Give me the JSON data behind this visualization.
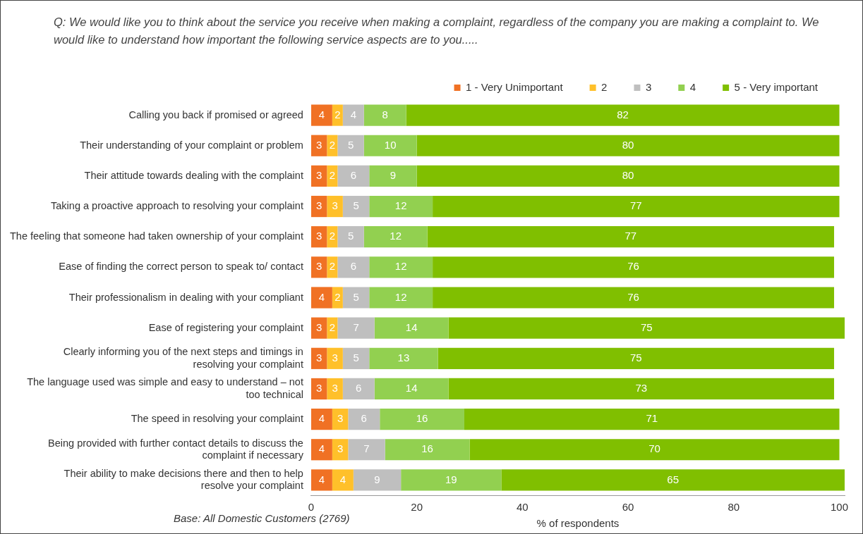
{
  "chart_data": {
    "type": "bar",
    "orientation": "horizontal",
    "stacked": true,
    "title": "Q:   We would like you to think about the service you receive when making a complaint, regardless of the company you are making a complaint to. We would like to understand how important the following service aspects are to you.....",
    "categories": [
      "Calling you back if promised or agreed",
      "Their understanding of your complaint or problem",
      "Their attitude towards dealing with the complaint",
      "Taking a proactive approach to resolving your complaint",
      "The feeling that someone had taken ownership of your complaint",
      "Ease of finding the correct person to speak to/ contact",
      "Their professionalism in dealing with your compliant",
      "Ease of registering your complaint",
      "Clearly informing you of the next steps and timings in resolving your complaint",
      "The language used was simple and easy to understand – not too technical",
      "The speed in resolving your complaint",
      "Being provided with further contact details to discuss the complaint if necessary",
      "Their ability to make decisions there and then to help resolve your complaint"
    ],
    "series": [
      {
        "name": "1 - Very Unimportant",
        "color": "#f07124",
        "values": [
          4,
          3,
          3,
          3,
          3,
          3,
          4,
          3,
          3,
          3,
          4,
          4,
          4
        ]
      },
      {
        "name": "2",
        "color": "#ffc02a",
        "values": [
          2,
          2,
          2,
          3,
          2,
          2,
          2,
          2,
          3,
          3,
          3,
          3,
          4
        ]
      },
      {
        "name": "3",
        "color": "#bfbfbf",
        "values": [
          4,
          5,
          6,
          5,
          5,
          6,
          5,
          7,
          5,
          6,
          6,
          7,
          9
        ]
      },
      {
        "name": "4",
        "color": "#92d050",
        "values": [
          8,
          10,
          9,
          12,
          12,
          12,
          12,
          14,
          13,
          14,
          16,
          16,
          19
        ]
      },
      {
        "name": "5 - Very important",
        "color": "#80bf00",
        "values": [
          82,
          80,
          80,
          77,
          77,
          76,
          76,
          75,
          75,
          73,
          71,
          70,
          65
        ]
      }
    ],
    "xlim": [
      0,
      101
    ],
    "xticks": [
      0,
      20,
      40,
      60,
      80,
      100
    ],
    "xlabel": "% of respondents",
    "grid": false,
    "legend": "top right",
    "data_labels": true,
    "annotations": [
      "Base: All Domestic Customers (2769)"
    ]
  }
}
